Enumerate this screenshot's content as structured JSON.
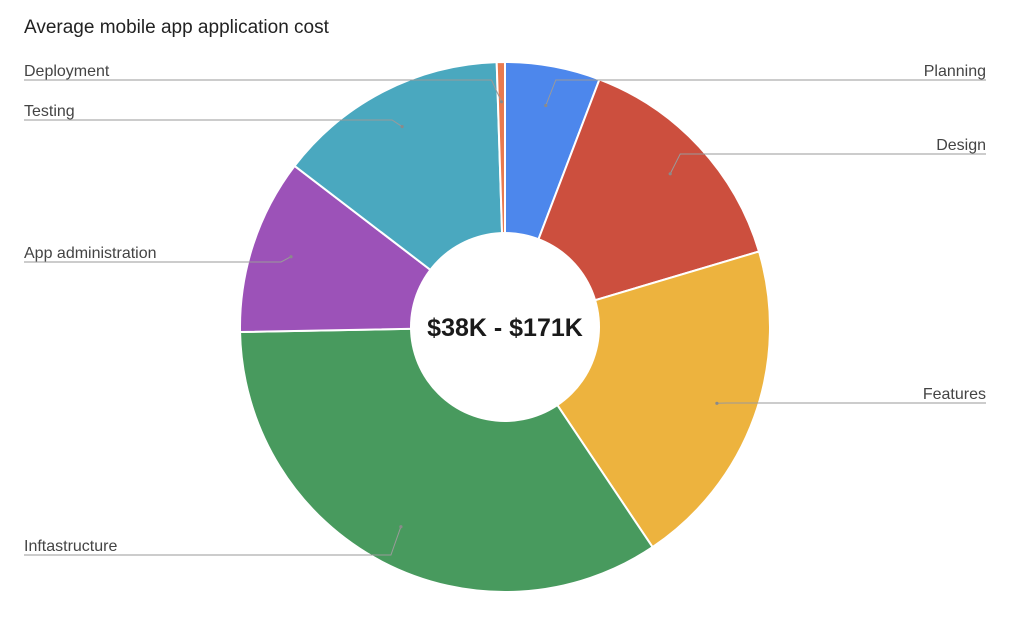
{
  "chart_data": {
    "type": "pie",
    "title": "Average mobile app application cost",
    "center_text": "$38K - $171K",
    "legend": "labels with leader lines",
    "slices": [
      {
        "label": "Planning",
        "value": 5.8,
        "color": "#4d87ec"
      },
      {
        "label": "Design",
        "value": 14.6,
        "color": "#cc4f3e"
      },
      {
        "label": "Features",
        "value": 20.2,
        "color": "#edb33e"
      },
      {
        "label": "Inftastructure",
        "value": 34.1,
        "color": "#489a5e"
      },
      {
        "label": "App administration",
        "value": 10.7,
        "color": "#9c52b8"
      },
      {
        "label": "Testing",
        "value": 14.1,
        "color": "#4aa8bf"
      },
      {
        "label": "Deployment",
        "value": 0.5,
        "color": "#e97a4f"
      }
    ]
  }
}
